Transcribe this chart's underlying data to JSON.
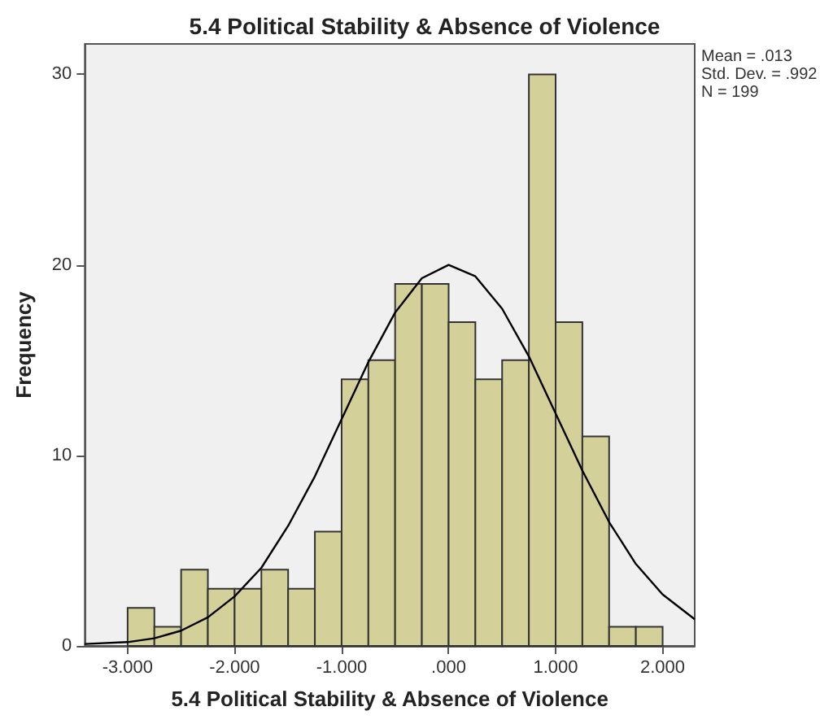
{
  "chart_data": {
    "type": "histogram",
    "title": "5.4 Political Stability & Absence of Violence",
    "xlabel": "5.4 Political Stability & Absence of Violence",
    "ylabel": "Frequency",
    "bins": [
      -3,
      -2.75,
      -2.5,
      -2.25,
      -2,
      -1.75,
      -1.5,
      -1.25,
      -1,
      -0.75,
      -0.5,
      -0.25,
      0,
      0.25,
      0.5,
      0.75,
      1,
      1.25,
      1.5,
      1.75,
      2
    ],
    "values": [
      2,
      1,
      4,
      3,
      3,
      4,
      3,
      6,
      14,
      15,
      19,
      19,
      17,
      14,
      15,
      30,
      17,
      11,
      1,
      1
    ],
    "color": "#d4d09a",
    "series": [
      {
        "type": "line",
        "color": "#000000",
        "x": [
          -3.4,
          -3,
          -2.75,
          -2.5,
          -2.25,
          -2,
          -1.75,
          -1.5,
          -1.25,
          -1,
          -0.75,
          -0.5,
          -0.25,
          0,
          0.25,
          0.5,
          0.75,
          1,
          1.25,
          1.5,
          1.75,
          2,
          2.3
        ],
        "values": [
          0.1,
          0.2,
          0.4,
          0.8,
          1.5,
          2.6,
          4.1,
          6.3,
          8.9,
          11.9,
          14.9,
          17.5,
          19.3,
          20,
          19.4,
          17.7,
          15.2,
          12.2,
          9.2,
          6.5,
          4.3,
          2.7,
          1.4
        ]
      }
    ],
    "xlim": [
      -3.4,
      2.3
    ],
    "xticks": [
      {
        "value": -3,
        "label": "-3.000"
      },
      {
        "value": -2,
        "label": "-2.000"
      },
      {
        "value": -1,
        "label": "-1.000"
      },
      {
        "value": 0,
        "label": ".000"
      },
      {
        "value": 1,
        "label": "1.000"
      },
      {
        "value": 2,
        "label": "2.000"
      }
    ],
    "ylim": [
      0,
      31.6
    ],
    "yticks": [
      0,
      10,
      20,
      30
    ],
    "grid": false,
    "annotations": [
      "Mean = .013",
      "Std. Dev. = .992",
      "N = 199"
    ]
  }
}
